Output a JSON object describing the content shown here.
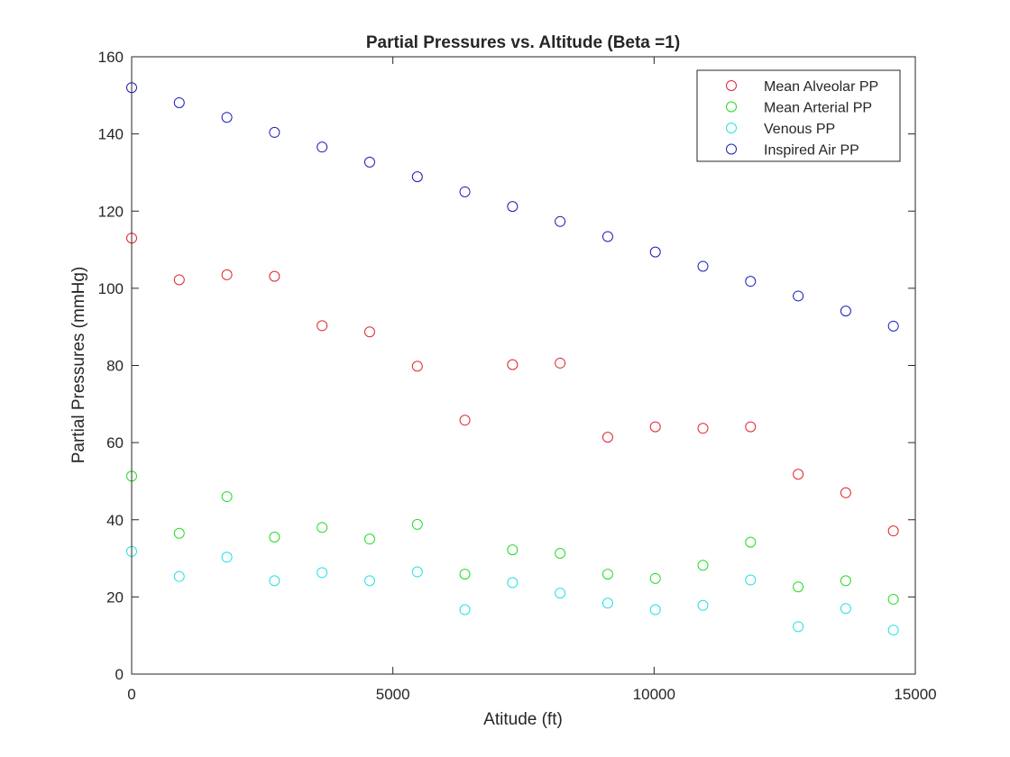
{
  "chart_data": {
    "type": "scatter",
    "title": "Partial Pressures vs. Altitude (Beta =1)",
    "xlabel": "Atitude (ft)",
    "ylabel": "Partial Pressures (mmHg)",
    "xlim": [
      0,
      15000
    ],
    "ylim": [
      0,
      160
    ],
    "xticks": [
      0,
      5000,
      10000,
      15000
    ],
    "yticks": [
      0,
      20,
      40,
      60,
      80,
      100,
      120,
      140,
      160
    ],
    "grid": false,
    "legend_location": "top-right",
    "marker": "open-circle",
    "x": [
      0,
      911,
      1823,
      2734,
      3645,
      4556,
      5468,
      6379,
      7290,
      8201,
      9113,
      10024,
      10935,
      11846,
      12758,
      13669,
      14580
    ],
    "series": [
      {
        "name": "Mean Alveolar PP",
        "color": "#e0262f",
        "values": [
          113,
          102.2,
          103.5,
          103.1,
          90.3,
          88.7,
          79.8,
          65.8,
          80.2,
          80.6,
          61.4,
          64.1,
          63.7,
          64.1,
          51.8,
          47,
          37.1
        ]
      },
      {
        "name": "Mean Arterial PP",
        "color": "#22dd22",
        "values": [
          51.3,
          36.5,
          46,
          35.5,
          38,
          35,
          38.8,
          25.9,
          32.2,
          31.3,
          25.9,
          24.8,
          28.2,
          34.2,
          22.6,
          24.2,
          19.4
        ]
      },
      {
        "name": "Venous PP",
        "color": "#22e1e1",
        "values": [
          31.8,
          25.3,
          30.3,
          24.2,
          26.3,
          24.2,
          26.5,
          16.7,
          23.7,
          21,
          18.4,
          16.7,
          17.8,
          24.4,
          12.3,
          17,
          11.4
        ]
      },
      {
        "name": "Inspired Air PP",
        "color": "#1e1eb4",
        "values": [
          152,
          148.1,
          144.3,
          140.4,
          136.6,
          132.7,
          128.9,
          125,
          121.2,
          117.3,
          113.4,
          109.4,
          105.7,
          101.8,
          98,
          94.1,
          90.2
        ]
      }
    ]
  }
}
